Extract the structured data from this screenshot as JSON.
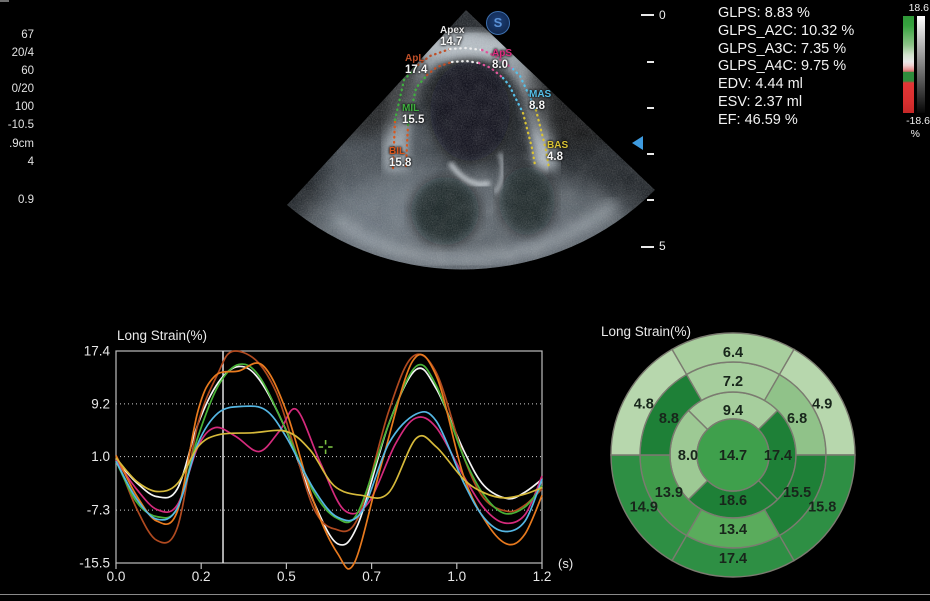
{
  "left_panel": {
    "values": [
      "67",
      "20/4",
      "60",
      "0/20",
      "100",
      "-10.5",
      ".9cm",
      "4",
      "0.9"
    ]
  },
  "ultrasound": {
    "logo": "S",
    "segments": [
      {
        "id": "apex",
        "label": "Apex",
        "value": "14.7",
        "color": "#e8e8e8"
      },
      {
        "id": "apl",
        "label": "ApL",
        "value": "17.4",
        "color": "#bf4f28"
      },
      {
        "id": "aps",
        "label": "ApS",
        "value": "8.0",
        "color": "#e02a80"
      },
      {
        "id": "mil",
        "label": "MIL",
        "value": "15.5",
        "color": "#3fae3f"
      },
      {
        "id": "bil",
        "label": "BIL",
        "value": "15.8",
        "color": "#d8571e"
      },
      {
        "id": "mas",
        "label": "MAS",
        "value": "8.8",
        "color": "#56c0e8"
      },
      {
        "id": "bas",
        "label": "BAS",
        "value": "4.8",
        "color": "#d8c235"
      }
    ],
    "roi_lines": [
      {
        "color": "#d8571e",
        "pts": [
          [
            118,
            165
          ],
          [
            120,
            117
          ]
        ]
      },
      {
        "color": "#3fae3f",
        "pts": [
          [
            120,
            117
          ],
          [
            129,
            77
          ],
          [
            143,
            62
          ]
        ]
      },
      {
        "color": "#bf4f28",
        "pts": [
          [
            143,
            62
          ],
          [
            155,
            53
          ],
          [
            175,
            46
          ]
        ]
      },
      {
        "color": "#ececec",
        "pts": [
          [
            175,
            46
          ],
          [
            191,
            45
          ],
          [
            207,
            47
          ]
        ]
      },
      {
        "color": "#e0559c",
        "pts": [
          [
            207,
            47
          ],
          [
            222,
            54
          ],
          [
            238,
            66
          ]
        ]
      },
      {
        "color": "#56c0e8",
        "pts": [
          [
            238,
            66
          ],
          [
            245,
            73
          ],
          [
            261,
            107
          ]
        ]
      },
      {
        "color": "#d8c235",
        "pts": [
          [
            261,
            107
          ],
          [
            271,
            147
          ],
          [
            274,
            165
          ]
        ]
      },
      {
        "color": "#d8571e",
        "pts": [
          [
            131,
            163
          ],
          [
            133,
            122
          ]
        ]
      },
      {
        "color": "#3fae3f",
        "pts": [
          [
            133,
            122
          ],
          [
            141,
            85
          ],
          [
            152,
            72
          ]
        ]
      },
      {
        "color": "#bf4f28",
        "pts": [
          [
            152,
            72
          ],
          [
            162,
            64
          ],
          [
            177,
            59
          ]
        ]
      },
      {
        "color": "#ececec",
        "pts": [
          [
            177,
            59
          ],
          [
            191,
            58
          ],
          [
            204,
            60
          ]
        ]
      },
      {
        "color": "#e0559c",
        "pts": [
          [
            204,
            60
          ],
          [
            216,
            65
          ],
          [
            228,
            75
          ]
        ]
      },
      {
        "color": "#56c0e8",
        "pts": [
          [
            228,
            75
          ],
          [
            234,
            82
          ],
          [
            248,
            110
          ]
        ]
      },
      {
        "color": "#d8c235",
        "pts": [
          [
            248,
            110
          ],
          [
            257,
            145
          ],
          [
            260,
            162
          ]
        ]
      }
    ]
  },
  "depth_ruler": {
    "top_label": "0",
    "bottom_label": "5"
  },
  "measurements": {
    "lines": [
      "GLPS: 8.83 %",
      "GLPS_A2C: 10.32 %",
      "GLPS_A3C: 7.35 %",
      "GLPS_A4C: 9.75 %",
      "EDV: 4.44 ml",
      "ESV: 2.37 ml",
      "EF: 46.59 %"
    ]
  },
  "colorbar": {
    "max_label": "18.6",
    "min_label": "-18.6",
    "unit": "%"
  },
  "chart_data": [
    {
      "type": "line",
      "title": "Long Strain(%)",
      "xlabel": "(s)",
      "ylabel": "",
      "xlim": [
        0,
        1.25
      ],
      "ylim": [
        -15.5,
        17.4
      ],
      "x_ticks": [
        {
          "v": 0,
          "label": "0.0"
        },
        {
          "v": 0.25,
          "label": "0.2"
        },
        {
          "v": 0.5,
          "label": "0.5"
        },
        {
          "v": 0.75,
          "label": "0.7"
        },
        {
          "v": 1.0,
          "label": "1.0"
        },
        {
          "v": 1.25,
          "label": "1.2"
        }
      ],
      "y_ticks": [
        {
          "v": 17.4,
          "label": "17.4"
        },
        {
          "v": 9.2,
          "label": "9.2"
        },
        {
          "v": 1.0,
          "label": "1.0"
        },
        {
          "v": -7.3,
          "label": "-7.3"
        },
        {
          "v": -15.5,
          "label": "-15.5"
        }
      ],
      "gridlines": [
        9.2,
        1.0,
        -7.3
      ],
      "grid": true,
      "legend": "none",
      "cursor_time": 0.314,
      "marker": {
        "t": 0.615,
        "v": 2.5,
        "color": "#7ac142"
      },
      "series": [
        {
          "name": "Apex",
          "color": "#f4f4f4",
          "points": [
            [
              0,
              0.5
            ],
            [
              0.06,
              -3
            ],
            [
              0.12,
              -5.2
            ],
            [
              0.18,
              -4
            ],
            [
              0.24,
              6
            ],
            [
              0.3,
              12.5
            ],
            [
              0.36,
              15
            ],
            [
              0.42,
              13
            ],
            [
              0.5,
              5
            ],
            [
              0.58,
              -6
            ],
            [
              0.65,
              -12.5
            ],
            [
              0.71,
              -9.5
            ],
            [
              0.8,
              6
            ],
            [
              0.88,
              14.5
            ],
            [
              0.94,
              11.5
            ],
            [
              1.02,
              2
            ],
            [
              1.08,
              -3.5
            ],
            [
              1.15,
              -5.5
            ],
            [
              1.2,
              -4.5
            ],
            [
              1.25,
              -2.5
            ]
          ]
        },
        {
          "name": "ApL",
          "color": "#b04a20",
          "points": [
            [
              0,
              1
            ],
            [
              0.06,
              -7
            ],
            [
              0.12,
              -12
            ],
            [
              0.18,
              -10
            ],
            [
              0.24,
              6
            ],
            [
              0.3,
              14
            ],
            [
              0.34,
              17.3
            ],
            [
              0.41,
              16
            ],
            [
              0.47,
              11
            ],
            [
              0.52,
              3
            ],
            [
              0.58,
              -7
            ],
            [
              0.64,
              -10.2
            ],
            [
              0.71,
              -8.5
            ],
            [
              0.8,
              8
            ],
            [
              0.87,
              16.5
            ],
            [
              0.94,
              14
            ],
            [
              1.02,
              1
            ],
            [
              1.08,
              -5.5
            ],
            [
              1.15,
              -7.5
            ],
            [
              1.2,
              -6.5
            ],
            [
              1.25,
              -4
            ]
          ]
        },
        {
          "name": "ApS",
          "color": "#d42a7c",
          "points": [
            [
              0,
              0.5
            ],
            [
              0.06,
              -4
            ],
            [
              0.12,
              -7.2
            ],
            [
              0.18,
              -6.5
            ],
            [
              0.24,
              2.5
            ],
            [
              0.29,
              5.5
            ],
            [
              0.35,
              4.2
            ],
            [
              0.42,
              1.8
            ],
            [
              0.48,
              5
            ],
            [
              0.53,
              8.3
            ],
            [
              0.6,
              0
            ],
            [
              0.67,
              -7.3
            ],
            [
              0.74,
              -6.2
            ],
            [
              0.82,
              3
            ],
            [
              0.88,
              7
            ],
            [
              0.94,
              5.5
            ],
            [
              1.02,
              -2
            ],
            [
              1.08,
              -7
            ],
            [
              1.14,
              -9.3
            ],
            [
              1.2,
              -8
            ],
            [
              1.25,
              -2
            ]
          ]
        },
        {
          "name": "MIL",
          "color": "#49b237",
          "points": [
            [
              0,
              0.3
            ],
            [
              0.06,
              -6
            ],
            [
              0.12,
              -8.3
            ],
            [
              0.18,
              -7
            ],
            [
              0.24,
              4
            ],
            [
              0.3,
              12
            ],
            [
              0.36,
              15.3
            ],
            [
              0.42,
              13.5
            ],
            [
              0.5,
              5
            ],
            [
              0.58,
              -4.5
            ],
            [
              0.65,
              -8.6
            ],
            [
              0.71,
              -7.6
            ],
            [
              0.8,
              6
            ],
            [
              0.88,
              15
            ],
            [
              0.94,
              12
            ],
            [
              1.02,
              1
            ],
            [
              1.08,
              -5
            ],
            [
              1.14,
              -7.8
            ],
            [
              1.2,
              -6.8
            ],
            [
              1.25,
              -3.5
            ]
          ]
        },
        {
          "name": "BIL",
          "color": "#e87a1e",
          "points": [
            [
              0,
              1.2
            ],
            [
              0.06,
              -5
            ],
            [
              0.12,
              -9
            ],
            [
              0.18,
              -7.5
            ],
            [
              0.24,
              8
            ],
            [
              0.29,
              13.5
            ],
            [
              0.36,
              14.3
            ],
            [
              0.43,
              15.2
            ],
            [
              0.5,
              8
            ],
            [
              0.58,
              -6
            ],
            [
              0.65,
              -14
            ],
            [
              0.7,
              -15.4
            ],
            [
              0.78,
              0
            ],
            [
              0.87,
              15.8
            ],
            [
              0.94,
              13.5
            ],
            [
              1.02,
              -2
            ],
            [
              1.09,
              -9.5
            ],
            [
              1.15,
              -12.6
            ],
            [
              1.2,
              -11
            ],
            [
              1.25,
              -5
            ]
          ]
        },
        {
          "name": "MAS",
          "color": "#55b7e4",
          "points": [
            [
              0,
              0.3
            ],
            [
              0.06,
              -5.5
            ],
            [
              0.12,
              -8.7
            ],
            [
              0.18,
              -7
            ],
            [
              0.24,
              3
            ],
            [
              0.3,
              7.8
            ],
            [
              0.37,
              8.8
            ],
            [
              0.44,
              8.2
            ],
            [
              0.5,
              4
            ],
            [
              0.58,
              -4
            ],
            [
              0.65,
              -8.4
            ],
            [
              0.72,
              -7.6
            ],
            [
              0.8,
              3
            ],
            [
              0.88,
              7.6
            ],
            [
              0.94,
              6.5
            ],
            [
              1.02,
              -3
            ],
            [
              1.08,
              -8.5
            ],
            [
              1.14,
              -10.6
            ],
            [
              1.2,
              -9
            ],
            [
              1.25,
              -2.5
            ]
          ]
        },
        {
          "name": "BAS",
          "color": "#d6b93a",
          "points": [
            [
              0,
              0.8
            ],
            [
              0.06,
              -2.8
            ],
            [
              0.12,
              -4.4
            ],
            [
              0.18,
              -3.2
            ],
            [
              0.24,
              2.5
            ],
            [
              0.3,
              4.4
            ],
            [
              0.4,
              4.7
            ],
            [
              0.5,
              4.9
            ],
            [
              0.57,
              2
            ],
            [
              0.64,
              -3.5
            ],
            [
              0.72,
              -5
            ],
            [
              0.8,
              -4.6
            ],
            [
              0.88,
              3.8
            ],
            [
              0.94,
              2.5
            ],
            [
              1.02,
              -2.5
            ],
            [
              1.08,
              -4.6
            ],
            [
              1.14,
              -5.4
            ],
            [
              1.2,
              -4.8
            ],
            [
              1.25,
              -3.8
            ]
          ]
        }
      ]
    },
    {
      "type": "bullseye",
      "title": "Long Strain(%)",
      "center": {
        "value": "14.7",
        "color": "#3fa04c"
      },
      "rings": [
        {
          "name": "apical",
          "r_inner": 36,
          "r_outer": 63,
          "label_r": 45,
          "segments": [
            {
              "value": "9.4",
              "start": -135,
              "end": -45,
              "color": "#a6ce9d"
            },
            {
              "value": "17.4",
              "start": -45,
              "end": 45,
              "color": "#1e8037"
            },
            {
              "value": "18.6",
              "start": 45,
              "end": 135,
              "color": "#1e8037"
            },
            {
              "value": "8.0",
              "start": 135,
              "end": 225,
              "color": "#9dc994"
            }
          ]
        },
        {
          "name": "mid",
          "r_inner": 63,
          "r_outer": 93,
          "label_r": 74,
          "segments": [
            {
              "value": "7.2",
              "start": -120,
              "end": -60,
              "color": "#a6ce9d"
            },
            {
              "value": "6.8",
              "start": -60,
              "end": 0,
              "color": "#90c289"
            },
            {
              "value": "15.5",
              "start": 0,
              "end": 60,
              "color": "#1e8037"
            },
            {
              "value": "13.4",
              "start": 60,
              "end": 120,
              "color": "#5aac5c"
            },
            {
              "value": "13.9",
              "start": 120,
              "end": 180,
              "color": "#3f9b4a"
            },
            {
              "value": "8.8",
              "start": 180,
              "end": 240,
              "color": "#1e8037"
            }
          ]
        },
        {
          "name": "basal",
          "r_inner": 93,
          "r_outer": 122,
          "label_r": 103,
          "segments": [
            {
              "value": "6.4",
              "start": -120,
              "end": -60,
              "color": "#a8cf9e"
            },
            {
              "value": "4.9",
              "start": -60,
              "end": 0,
              "color": "#b7d7ad"
            },
            {
              "value": "15.8",
              "start": 0,
              "end": 60,
              "color": "#2e8f44"
            },
            {
              "value": "17.4",
              "start": 60,
              "end": 120,
              "color": "#2e8f44"
            },
            {
              "value": "14.9",
              "start": 120,
              "end": 180,
              "color": "#2e8f44"
            },
            {
              "value": "4.8",
              "start": 180,
              "end": 240,
              "color": "#b7d7ad"
            }
          ]
        }
      ]
    }
  ]
}
